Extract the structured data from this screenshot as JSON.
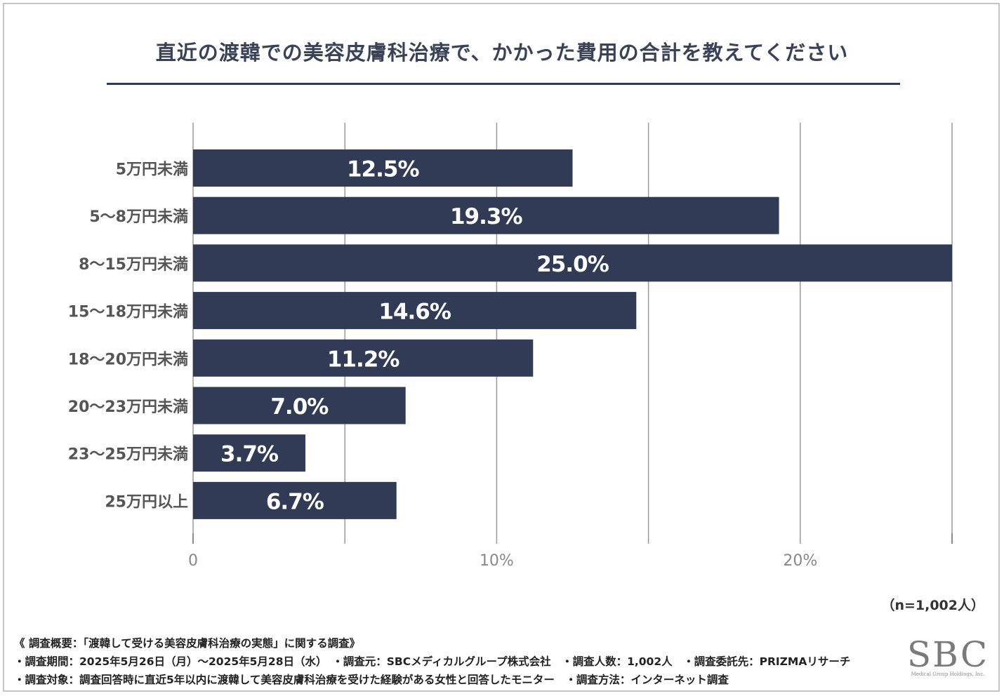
{
  "title": "直近の渡韓での美容皮膚科治療で、かかった費用の合計を教えてください",
  "chart_data": {
    "type": "bar",
    "orientation": "horizontal",
    "title": "直近の渡韓での美容皮膚科治療で、かかった費用の合計を教えてください",
    "categories": [
      "5万円未満",
      "5～8万円未満",
      "8～15万円未満",
      "15～18万円未満",
      "18～20万円未満",
      "20～23万円未満",
      "23～25万円未満",
      "25万円以上"
    ],
    "values": [
      12.5,
      19.3,
      25.0,
      14.6,
      11.2,
      7.0,
      3.7,
      6.7
    ],
    "value_labels": [
      "12.5%",
      "19.3%",
      "25.0%",
      "14.6%",
      "11.2%",
      "7.0%",
      "3.7%",
      "6.7%"
    ],
    "xlim": [
      0,
      25
    ],
    "xticks": [
      0,
      10,
      20
    ],
    "xtick_labels": [
      "0",
      "10%",
      "20%"
    ],
    "gridlines": [
      0,
      5,
      10,
      15,
      20,
      25
    ],
    "bar_color": "#313b55",
    "grid_color": "#9a9a9a",
    "xlabel": "",
    "ylabel": ""
  },
  "sample_note": "（n=1,002人）",
  "footer": {
    "line1": "《 調査概要：「渡韓して受ける美容皮膚科治療の実態」に関する調査》",
    "line2": "・調査期間：2025年5月26日（月）～2025年5月28日（水）　・調査元：SBCメディカルグループ株式会社　・調査人数：1,002人　・調査委託先：PRIZMAリサーチ",
    "line3": "・調査対象：調査回答時に直近5年以内に渡韓して美容皮膚科治療を受けた経験がある女性と回答したモニター　・調査方法：インターネット調査"
  },
  "logo": {
    "main": "SBC",
    "sub": "Medical Group Holdings, Inc."
  }
}
